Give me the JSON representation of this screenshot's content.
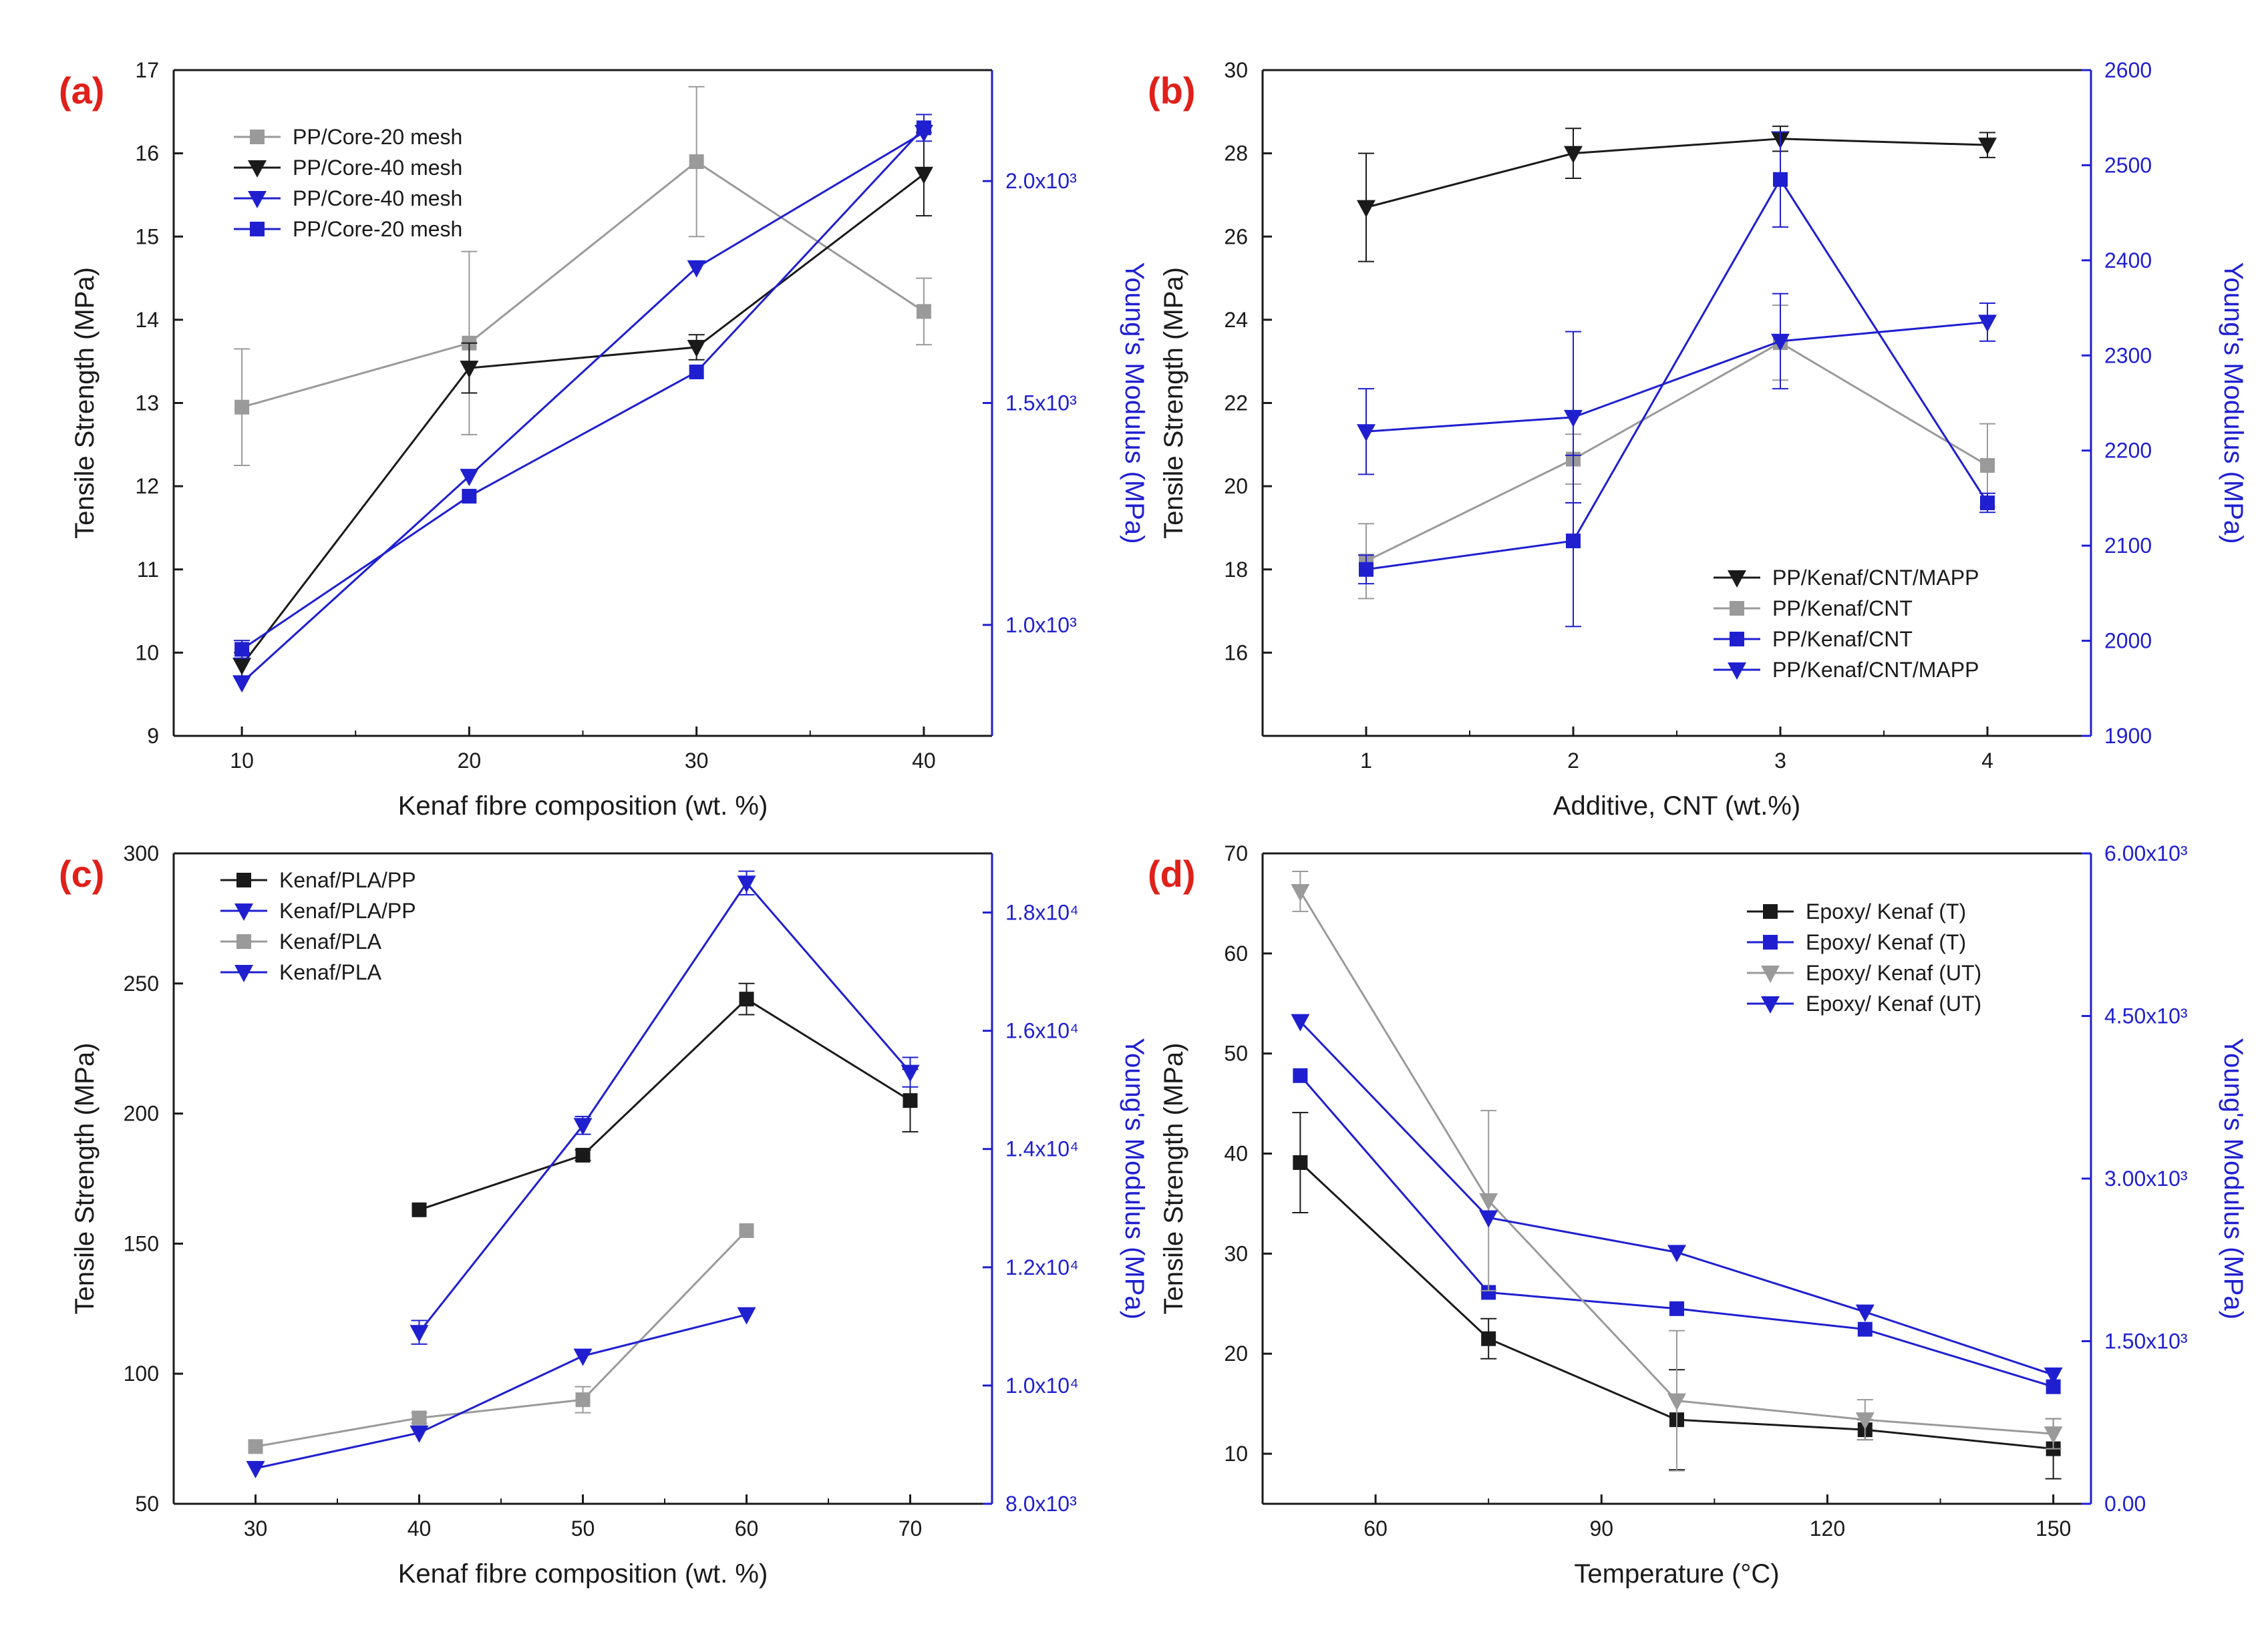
{
  "colors": {
    "black": "#1a1a1a",
    "gray": "#9a9a9a",
    "blue": "#1f1fd0",
    "label_red": "#e0201a"
  },
  "chart_data": [
    {
      "type": "line",
      "panel_label": "(a)",
      "xlabel": "Kenaf fibre composition (wt. %)",
      "ylabel": "Tensile Strength (MPa)",
      "ylabel_right": "Young's Modulus (MPa)",
      "xlim": [
        7,
        43
      ],
      "ylim": [
        9,
        17
      ],
      "ylim_right": [
        750,
        2250
      ],
      "xticks": [
        10,
        20,
        30,
        40
      ],
      "xtick_labels": [
        "10",
        "20",
        "30",
        "40"
      ],
      "yticks": [
        9,
        10,
        11,
        12,
        13,
        14,
        15,
        16,
        17
      ],
      "ytick_labels": [
        "9",
        "10",
        "11",
        "12",
        "13",
        "14",
        "15",
        "16",
        "17"
      ],
      "yticks_right": [
        1000,
        1500,
        2000
      ],
      "ytick_labels_right": [
        "1.0x10³",
        "1.5x10³",
        "2.0x10³"
      ],
      "legend_position": "top-left",
      "series": [
        {
          "name": "PP/Core-20 mesh",
          "axis": "left",
          "color": "gray",
          "marker": "square",
          "x": [
            10,
            20,
            30,
            40
          ],
          "y": [
            12.95,
            13.72,
            15.9,
            14.1
          ],
          "err": [
            0.7,
            1.1,
            0.9,
            0.4
          ]
        },
        {
          "name": "PP/Core-40 mesh",
          "axis": "left",
          "color": "black",
          "marker": "triangle-down",
          "x": [
            10,
            20,
            30,
            40
          ],
          "y": [
            9.85,
            13.42,
            13.67,
            15.75
          ],
          "err": [
            0.15,
            0.3,
            0.15,
            0.5
          ]
        },
        {
          "name": "PP/Core-40 mesh",
          "axis": "right",
          "color": "blue",
          "marker": "triangle-down",
          "x": [
            10,
            20,
            30,
            40
          ],
          "y": [
            870,
            1335,
            1805,
            2110
          ],
          "err": [
            0,
            0,
            0,
            0
          ]
        },
        {
          "name": "PP/Core-20 mesh",
          "axis": "right",
          "color": "blue",
          "marker": "square",
          "x": [
            10,
            20,
            30,
            40
          ],
          "y": [
            945,
            1290,
            1570,
            2120
          ],
          "err": [
            20,
            0,
            0,
            30
          ]
        }
      ]
    },
    {
      "type": "line",
      "panel_label": "(b)",
      "xlabel": "Additive, CNT (wt.%)",
      "ylabel": "Tensile Strength (MPa)",
      "ylabel_right": "Young's Modulus (MPa)",
      "xlim": [
        0.5,
        4.5
      ],
      "ylim": [
        14,
        30
      ],
      "ylim_right": [
        1900,
        2600
      ],
      "xticks": [
        1,
        2,
        3,
        4
      ],
      "xtick_labels": [
        "1",
        "2",
        "3",
        "4"
      ],
      "yticks": [
        16,
        18,
        20,
        22,
        24,
        26,
        28,
        30
      ],
      "ytick_labels": [
        "16",
        "18",
        "20",
        "22",
        "24",
        "26",
        "28",
        "30"
      ],
      "yticks_right": [
        1900,
        2000,
        2100,
        2200,
        2300,
        2400,
        2500,
        2600
      ],
      "ytick_labels_right": [
        "1900",
        "2000",
        "2100",
        "2200",
        "2300",
        "2400",
        "2500",
        "2600"
      ],
      "legend_position": "bottom-right",
      "series": [
        {
          "name": "PP/Kenaf/CNT/MAPP",
          "axis": "left",
          "color": "black",
          "marker": "triangle-down",
          "x": [
            1,
            2,
            3,
            4
          ],
          "y": [
            26.7,
            28.0,
            28.35,
            28.2
          ],
          "err": [
            1.3,
            0.6,
            0.3,
            0.3
          ]
        },
        {
          "name": "PP/Kenaf/CNT",
          "axis": "left",
          "color": "gray",
          "marker": "square",
          "x": [
            1,
            2,
            3,
            4
          ],
          "y": [
            18.2,
            20.65,
            23.45,
            20.5
          ],
          "err": [
            0.9,
            0.6,
            0.9,
            1.0
          ]
        },
        {
          "name": "PP/Kenaf/CNT",
          "axis": "right",
          "color": "blue",
          "marker": "square",
          "x": [
            1,
            2,
            3,
            4
          ],
          "y": [
            2075,
            2105,
            2485,
            2145
          ],
          "err": [
            15,
            90,
            50,
            10
          ]
        },
        {
          "name": "PP/Kenaf/CNT/MAPP",
          "axis": "right",
          "color": "blue",
          "marker": "triangle-down",
          "x": [
            1,
            2,
            3,
            4
          ],
          "y": [
            2220,
            2235,
            2315,
            2335
          ],
          "err": [
            45,
            90,
            50,
            20
          ]
        }
      ]
    },
    {
      "type": "line",
      "panel_label": "(c)",
      "xlabel": "Kenaf fibre composition (wt. %)",
      "ylabel": "Tensile Strength (MPa)",
      "ylabel_right": "Young's Modulus (MPa)",
      "xlim": [
        25,
        75
      ],
      "ylim": [
        50,
        300
      ],
      "ylim_right": [
        8000,
        19000
      ],
      "xticks": [
        30,
        40,
        50,
        60,
        70
      ],
      "xtick_labels": [
        "30",
        "40",
        "50",
        "60",
        "70"
      ],
      "yticks": [
        50,
        100,
        150,
        200,
        250,
        300
      ],
      "ytick_labels": [
        "50",
        "100",
        "150",
        "200",
        "250",
        "300"
      ],
      "yticks_right": [
        8000,
        10000,
        12000,
        14000,
        16000,
        18000
      ],
      "ytick_labels_right": [
        "8.0x10³",
        "1.0x10⁴",
        "1.2x10⁴",
        "1.4x10⁴",
        "1.6x10⁴",
        "1.8x10⁴"
      ],
      "legend_position": "top-left",
      "series": [
        {
          "name": "Kenaf/PLA/PP",
          "axis": "left",
          "color": "black",
          "marker": "square",
          "x": [
            40,
            50,
            60,
            70
          ],
          "y": [
            163,
            184,
            244,
            205
          ],
          "err": [
            0,
            2,
            6,
            12
          ]
        },
        {
          "name": "Kenaf/PLA/PP",
          "axis": "right",
          "color": "blue",
          "marker": "triangle-down",
          "x": [
            40,
            50,
            60,
            70
          ],
          "y": [
            10900,
            14400,
            18500,
            15300
          ],
          "err": [
            200,
            150,
            200,
            250
          ]
        },
        {
          "name": "Kenaf/PLA",
          "axis": "left",
          "color": "gray",
          "marker": "square",
          "x": [
            30,
            40,
            50,
            60
          ],
          "y": [
            72,
            83,
            90,
            155
          ],
          "err": [
            0,
            2,
            5,
            0
          ]
        },
        {
          "name": "Kenaf/PLA",
          "axis": "right",
          "color": "blue",
          "marker": "triangle-down",
          "x": [
            30,
            40,
            50,
            60
          ],
          "y": [
            8600,
            9200,
            10500,
            11200
          ],
          "err": [
            0,
            0,
            0,
            0
          ]
        }
      ]
    },
    {
      "type": "line",
      "panel_label": "(d)",
      "xlabel": "Temperature (°C)",
      "ylabel": "Tensile Strength (MPa)",
      "ylabel_right": "Young's Modulus (MPa)",
      "xlim": [
        45,
        155
      ],
      "ylim": [
        5,
        70
      ],
      "ylim_right": [
        0,
        6000
      ],
      "xticks": [
        60,
        90,
        120,
        150
      ],
      "xtick_labels": [
        "60",
        "90",
        "120",
        "150"
      ],
      "yticks": [
        10,
        20,
        30,
        40,
        50,
        60,
        70
      ],
      "ytick_labels": [
        "10",
        "20",
        "30",
        "40",
        "50",
        "60",
        "70"
      ],
      "yticks_right": [
        0,
        1500,
        3000,
        4500,
        6000
      ],
      "ytick_labels_right": [
        "0.00",
        "1.50x10³",
        "3.00x10³",
        "4.50x10³",
        "6.00x10³"
      ],
      "legend_position": "top-right",
      "series": [
        {
          "name": "Epoxy/ Kenaf (T)",
          "axis": "left",
          "color": "black",
          "marker": "square",
          "x": [
            50,
            75,
            100,
            125,
            150
          ],
          "y": [
            39.1,
            21.5,
            13.4,
            12.4,
            10.5
          ],
          "err": [
            5,
            2,
            5,
            1,
            3
          ]
        },
        {
          "name": "Epoxy/ Kenaf (T)",
          "axis": "right",
          "color": "blue",
          "marker": "square",
          "x": [
            50,
            75,
            100,
            125,
            150
          ],
          "y": [
            3950,
            1950,
            1800,
            1610,
            1080
          ],
          "err": [
            0,
            0,
            0,
            0,
            0
          ]
        },
        {
          "name": "Epoxy/ Kenaf (UT)",
          "axis": "left",
          "color": "gray",
          "marker": "triangle-down",
          "x": [
            50,
            75,
            100,
            125,
            150
          ],
          "y": [
            66.2,
            35.3,
            15.3,
            13.4,
            12.0
          ],
          "err": [
            2,
            9,
            7,
            2,
            1.5
          ]
        },
        {
          "name": "Epoxy/ Kenaf (UT)",
          "axis": "right",
          "color": "blue",
          "marker": "triangle-down",
          "x": [
            50,
            75,
            100,
            125,
            150
          ],
          "y": [
            4450,
            2640,
            2320,
            1770,
            1190
          ],
          "err": [
            0,
            0,
            0,
            0,
            0
          ]
        }
      ]
    }
  ]
}
